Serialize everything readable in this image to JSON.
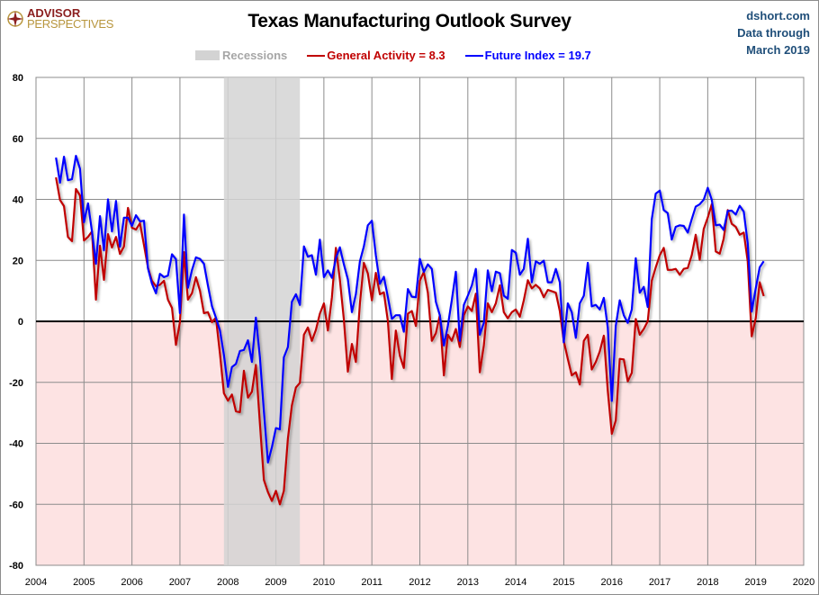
{
  "header": {
    "title": "Texas Manufacturing Outlook Survey",
    "logo": {
      "line1": "ADVISOR",
      "line2": "PERSPECTIVES"
    },
    "source": {
      "site": "dshort.com",
      "line2": "Data through",
      "line3": "March 2019"
    }
  },
  "legend": {
    "recessions": "Recessions",
    "general": "General Activity = 8.3",
    "future": "Future Index = 19.7"
  },
  "colors": {
    "general": "#c00000",
    "future": "#0000ff",
    "recession": "#d3d3d3",
    "negative_zone": "#fde3e3"
  },
  "chart_data": {
    "type": "line",
    "title": "Texas Manufacturing Outlook Survey",
    "xlabel": "",
    "ylabel": "",
    "ylim": [
      -80,
      80
    ],
    "xlim": [
      2004,
      2020
    ],
    "grid": true,
    "legend_position": "top",
    "yticks": [
      "80",
      "60",
      "40",
      "20",
      "0",
      "-20",
      "-40",
      "-60",
      "-80"
    ],
    "xticks": [
      "2004",
      "2005",
      "2006",
      "2007",
      "2008",
      "2009",
      "2010",
      "2011",
      "2012",
      "2013",
      "2014",
      "2015",
      "2016",
      "2017",
      "2018",
      "2019",
      "2020"
    ],
    "start_month": "2004-06",
    "frequency": "monthly",
    "recessions": [
      {
        "start": "2007-12",
        "end": "2009-06"
      }
    ],
    "series": [
      {
        "name": "General Activity",
        "color": "#c00000",
        "values": [
          47.2,
          39.8,
          37.8,
          27.7,
          26.3,
          43.4,
          41.3,
          26.5,
          27.7,
          29.5,
          7.1,
          24.8,
          13.6,
          28.6,
          24.2,
          27.7,
          22.1,
          24.5,
          37.2,
          30.7,
          30.1,
          32.2,
          25,
          17.7,
          13.3,
          11.5,
          12,
          13.3,
          7.1,
          4.4,
          -7.7,
          -0.3,
          22.7,
          7.1,
          9.2,
          14.5,
          10,
          2.7,
          3,
          -0.3,
          1.2,
          -10.6,
          -23.6,
          -26,
          -24,
          -29.5,
          -29.8,
          -16.2,
          -25,
          -23.1,
          -14.3,
          -33.5,
          -52,
          -56,
          -58.9,
          -55.6,
          -60,
          -55.6,
          -38.4,
          -27.6,
          -21.7,
          -20.2,
          -4.4,
          -2,
          -6.4,
          -2.8,
          2.5,
          5.9,
          -3,
          7.9,
          24.1,
          13.8,
          0.5,
          -16.5,
          -7.4,
          -13.3,
          5.9,
          19.2,
          15.7,
          6.9,
          15.9,
          8.9,
          9.5,
          0,
          -18.9,
          -3,
          -11.3,
          -15.3,
          2.5,
          3.4,
          -1.5,
          13.3,
          16.2,
          9.4,
          -6.4,
          -3.9,
          2,
          -17.7,
          -4.4,
          -6.4,
          -2.5,
          -8.4,
          2,
          4.9,
          3.4,
          9.1,
          -16.7,
          -7.9,
          5.9,
          3,
          5.9,
          11.8,
          3,
          1,
          3,
          3.9,
          1.5,
          6.9,
          13.5,
          10.8,
          12,
          10.8,
          7.9,
          10.3,
          9.9,
          9.4,
          3.4,
          -6.4,
          -12.3,
          -17.7,
          -16.7,
          -20.7,
          -6.4,
          -4.4,
          -15.8,
          -13.3,
          -9.9,
          -4.7,
          -22.7,
          -36.9,
          -32.5,
          -12.3,
          -12.5,
          -19.7,
          -16.9,
          0.8,
          -4.4,
          -2.5,
          0,
          13.3,
          17.7,
          21.7,
          24.1,
          16.9,
          16.9,
          17.2,
          15.3,
          17.2,
          17.5,
          21.7,
          28.4,
          20.2,
          30.3,
          34,
          38.4,
          22.9,
          22.2,
          27.1,
          36.5,
          32,
          31,
          28.4,
          29.1,
          19.7,
          -4.9,
          1,
          12.8,
          8.3
        ]
      },
      {
        "name": "Future Index",
        "color": "#0000ff",
        "values": [
          53.7,
          45.5,
          54,
          46.3,
          46.6,
          54.3,
          50,
          32.5,
          38.7,
          29.5,
          18.9,
          34.5,
          23.3,
          40,
          29.5,
          39.5,
          24.5,
          34,
          34,
          31.3,
          34.8,
          32.8,
          33,
          17.4,
          12.4,
          9.2,
          15.6,
          14.5,
          15,
          22,
          20.4,
          2.7,
          35,
          11,
          16.8,
          21,
          20.5,
          18.9,
          11.8,
          5,
          1.2,
          -3,
          -11,
          -21.5,
          -15,
          -14,
          -9.7,
          -9.4,
          -6.2,
          -13.3,
          1.2,
          -11.8,
          -29.5,
          -46.3,
          -41.3,
          -35,
          -35.4,
          -11.8,
          -8.4,
          6.4,
          8.9,
          5.4,
          24.6,
          21.2,
          21.7,
          15.3,
          26.8,
          14.5,
          16.7,
          14.3,
          20.7,
          24.3,
          18.7,
          13.8,
          3,
          8.9,
          19.7,
          24.6,
          31.5,
          33,
          21.7,
          12.3,
          14.6,
          7.9,
          0.8,
          2,
          2,
          -3.4,
          10.6,
          8.1,
          7.9,
          20.5,
          16.2,
          18.7,
          17.2,
          6.4,
          2,
          -7.9,
          -1.5,
          6.9,
          16.3,
          -6.4,
          5.4,
          8.4,
          11.8,
          17.2,
          -4.4,
          -0.5,
          16.7,
          9.9,
          16.3,
          15.8,
          8.4,
          7.4,
          23.4,
          22.5,
          15.3,
          17.2,
          27.1,
          12.8,
          19.7,
          18.9,
          19.9,
          12.8,
          12.8,
          17.2,
          12.8,
          -6.9,
          5.9,
          3,
          -5.4,
          5.9,
          8.4,
          19.2,
          4.9,
          5.4,
          3.9,
          7.7,
          -2,
          -26.1,
          -1.5,
          6.9,
          2,
          -0.5,
          3.9,
          20.7,
          9.4,
          11.3,
          4.7,
          33.5,
          41.9,
          42.9,
          36.5,
          35.5,
          26.8,
          31,
          31.5,
          31.3,
          29.1,
          33.5,
          37.6,
          38.4,
          39.9,
          43.8,
          39.9,
          31.5,
          31.7,
          30,
          36.2,
          36.3,
          35,
          37.9,
          36,
          25.6,
          3.2,
          10.8,
          17.7,
          19.7
        ]
      }
    ]
  }
}
